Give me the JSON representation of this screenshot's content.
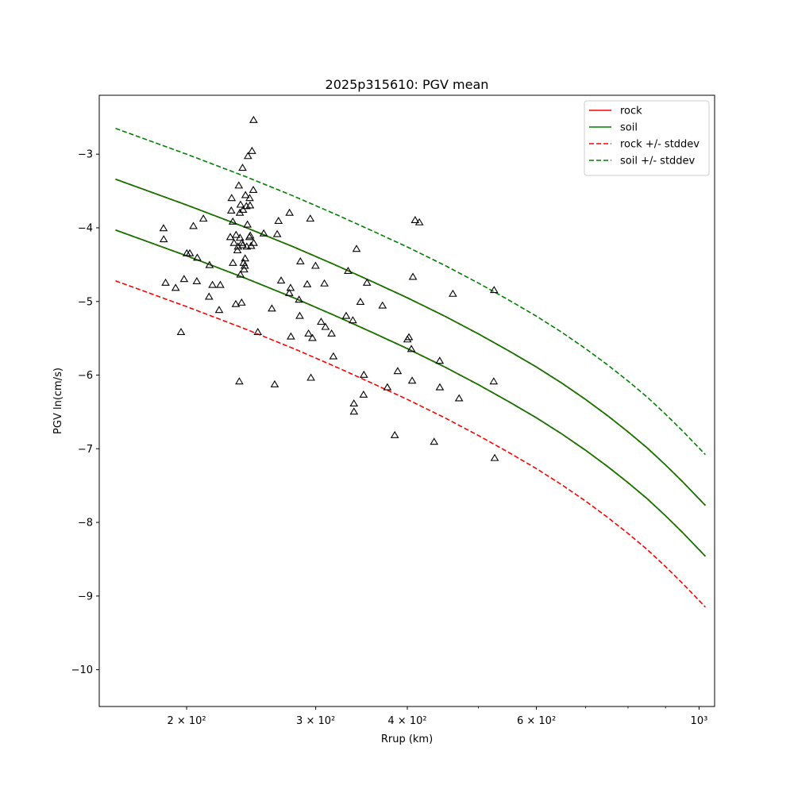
{
  "chart_data": {
    "type": "line",
    "title": "2025p315610: PGV mean",
    "xlabel": "Rrup (km)",
    "ylabel": "PGV ln(cm/s)",
    "xscale": "log",
    "xlim": [
      152,
      1050
    ],
    "ylim": [
      -10.5,
      -2.2
    ],
    "grid": false,
    "legend_position": "top-right",
    "x_ticks": [
      {
        "value": 200,
        "label": "2 × 10²"
      },
      {
        "value": 300,
        "label": "3 × 10²"
      },
      {
        "value": 400,
        "label": "4 × 10²"
      },
      {
        "value": 600,
        "label": "6 × 10²"
      },
      {
        "value": 1000,
        "label": "10³"
      }
    ],
    "x_minor_ticks": [
      500,
      700,
      800,
      900
    ],
    "y_ticks": [
      {
        "value": -3,
        "label": "−3"
      },
      {
        "value": -4,
        "label": "−4"
      },
      {
        "value": -5,
        "label": "−5"
      },
      {
        "value": -6,
        "label": "−6"
      },
      {
        "value": -7,
        "label": "−7"
      },
      {
        "value": -8,
        "label": "−8"
      },
      {
        "value": -9,
        "label": "−9"
      },
      {
        "value": -10,
        "label": "−10"
      }
    ],
    "series": [
      {
        "name": "rock",
        "color": "#ff0000",
        "style": "solid",
        "legend": true,
        "x": [
          160,
          200,
          240,
          280,
          320,
          360,
          400,
          450,
          500,
          550,
          600,
          650,
          700,
          750,
          800,
          850,
          900,
          950,
          1000,
          1020
        ],
        "values": [
          -4.03,
          -4.38,
          -4.68,
          -4.95,
          -5.2,
          -5.43,
          -5.64,
          -5.89,
          -6.13,
          -6.36,
          -6.58,
          -6.8,
          -7.02,
          -7.24,
          -7.46,
          -7.68,
          -7.91,
          -8.14,
          -8.37,
          -8.46
        ]
      },
      {
        "name": "rock",
        "color": "#ff0000",
        "style": "solid",
        "legend": false,
        "x": [
          160,
          200,
          240,
          280,
          320,
          360,
          400,
          450,
          500,
          550,
          600,
          650,
          700,
          750,
          800,
          850,
          900,
          950,
          1000,
          1020
        ],
        "values": [
          -3.34,
          -3.69,
          -3.99,
          -4.26,
          -4.51,
          -4.74,
          -4.95,
          -5.2,
          -5.44,
          -5.67,
          -5.89,
          -6.11,
          -6.33,
          -6.55,
          -6.77,
          -6.99,
          -7.22,
          -7.45,
          -7.68,
          -7.77
        ]
      },
      {
        "name": "soil",
        "color": "#008000",
        "style": "solid",
        "legend": true,
        "x": [
          160,
          200,
          240,
          280,
          320,
          360,
          400,
          450,
          500,
          550,
          600,
          650,
          700,
          750,
          800,
          850,
          900,
          950,
          1000,
          1020
        ],
        "values": [
          -4.03,
          -4.38,
          -4.68,
          -4.95,
          -5.2,
          -5.43,
          -5.64,
          -5.89,
          -6.13,
          -6.36,
          -6.58,
          -6.8,
          -7.02,
          -7.24,
          -7.46,
          -7.68,
          -7.91,
          -8.14,
          -8.37,
          -8.46
        ]
      },
      {
        "name": "soil",
        "color": "#008000",
        "style": "solid",
        "legend": false,
        "x": [
          160,
          200,
          240,
          280,
          320,
          360,
          400,
          450,
          500,
          550,
          600,
          650,
          700,
          750,
          800,
          850,
          900,
          950,
          1000,
          1020
        ],
        "values": [
          -3.34,
          -3.69,
          -3.99,
          -4.26,
          -4.51,
          -4.74,
          -4.95,
          -5.2,
          -5.44,
          -5.67,
          -5.89,
          -6.11,
          -6.33,
          -6.55,
          -6.77,
          -6.99,
          -7.22,
          -7.45,
          -7.68,
          -7.77
        ]
      },
      {
        "name": "rock +/- stddev",
        "color": "#ff0000",
        "style": "dashed",
        "legend": true,
        "x": [
          160,
          200,
          240,
          280,
          320,
          360,
          400,
          450,
          500,
          550,
          600,
          650,
          700,
          750,
          800,
          850,
          900,
          950,
          1000,
          1020
        ],
        "values": [
          -4.72,
          -5.07,
          -5.37,
          -5.64,
          -5.89,
          -6.12,
          -6.33,
          -6.58,
          -6.82,
          -7.05,
          -7.27,
          -7.49,
          -7.71,
          -7.93,
          -8.15,
          -8.37,
          -8.6,
          -8.83,
          -9.06,
          -9.15
        ]
      },
      {
        "name": "rock +/- stddev",
        "color": "#ff0000",
        "style": "dashed",
        "legend": false,
        "x": [
          160,
          200,
          240,
          280,
          320,
          360,
          400,
          450,
          500,
          550,
          600,
          650,
          700,
          750,
          800,
          850,
          900,
          950,
          1000,
          1020
        ],
        "values": [
          -4.03,
          -4.38,
          -4.68,
          -4.95,
          -5.2,
          -5.43,
          -5.64,
          -5.89,
          -6.13,
          -6.36,
          -6.58,
          -6.8,
          -7.02,
          -7.24,
          -7.46,
          -7.68,
          -7.91,
          -8.14,
          -8.37,
          -8.46
        ]
      },
      {
        "name": "rock +/- stddev",
        "color": "#ff0000",
        "style": "dashed",
        "legend": false,
        "x": [
          160,
          200,
          240,
          280,
          320,
          360,
          400,
          450,
          500,
          550,
          600,
          650,
          700,
          750,
          800,
          850,
          900,
          950,
          1000,
          1020
        ],
        "values": [
          -3.34,
          -3.69,
          -3.99,
          -4.26,
          -4.51,
          -4.74,
          -4.95,
          -5.2,
          -5.44,
          -5.67,
          -5.89,
          -6.11,
          -6.33,
          -6.55,
          -6.77,
          -6.99,
          -7.22,
          -7.45,
          -7.68,
          -7.77
        ]
      },
      {
        "name": "soil +/- stddev",
        "color": "#008000",
        "style": "dashed",
        "legend": true,
        "x": [
          160,
          200,
          240,
          280,
          320,
          360,
          400,
          450,
          500,
          550,
          600,
          650,
          700,
          750,
          800,
          850,
          900,
          950,
          1000,
          1020
        ],
        "values": [
          -2.65,
          -3.0,
          -3.3,
          -3.57,
          -3.82,
          -4.05,
          -4.26,
          -4.51,
          -4.75,
          -4.98,
          -5.2,
          -5.42,
          -5.64,
          -5.86,
          -6.08,
          -6.3,
          -6.53,
          -6.76,
          -6.99,
          -7.08
        ]
      },
      {
        "name": "soil +/- stddev",
        "color": "#008000",
        "style": "dashed",
        "legend": false,
        "x": [
          160,
          200,
          240,
          280,
          320,
          360,
          400,
          450,
          500,
          550,
          600,
          650,
          700,
          750,
          800,
          850,
          900,
          950,
          1000,
          1020
        ],
        "values": [
          -4.03,
          -4.38,
          -4.68,
          -4.95,
          -5.2,
          -5.43,
          -5.64,
          -5.89,
          -6.13,
          -6.36,
          -6.58,
          -6.8,
          -7.02,
          -7.24,
          -7.46,
          -7.68,
          -7.91,
          -8.14,
          -8.37,
          -8.46
        ]
      },
      {
        "name": "soil +/- stddev",
        "color": "#008000",
        "style": "dashed",
        "legend": false,
        "x": [
          160,
          200,
          240,
          280,
          320,
          360,
          400,
          450,
          500,
          550,
          600,
          650,
          700,
          750,
          800,
          850,
          900,
          950,
          1000,
          1020
        ],
        "values": [
          -3.34,
          -3.69,
          -3.99,
          -4.26,
          -4.51,
          -4.74,
          -4.95,
          -5.2,
          -5.44,
          -5.67,
          -5.89,
          -6.11,
          -6.33,
          -6.55,
          -6.77,
          -6.99,
          -7.22,
          -7.45,
          -7.68,
          -7.77
        ]
      }
    ],
    "observations": {
      "marker": "triangle-open",
      "color": "#000000",
      "points": [
        [
          186.0,
          -4.01
        ],
        [
          186.1,
          -4.16
        ],
        [
          187.2,
          -4.75
        ],
        [
          193.2,
          -4.82
        ],
        [
          196.5,
          -5.42
        ],
        [
          198.4,
          -4.7
        ],
        [
          200.1,
          -4.35
        ],
        [
          202.0,
          -4.35
        ],
        [
          204.3,
          -3.98
        ],
        [
          206.5,
          -4.73
        ],
        [
          206.8,
          -4.41
        ],
        [
          210.8,
          -3.88
        ],
        [
          214.6,
          -4.94
        ],
        [
          214.9,
          -4.51
        ],
        [
          216.9,
          -4.78
        ],
        [
          221.5,
          -5.12
        ],
        [
          222.3,
          -4.78
        ],
        [
          229.4,
          -4.13
        ],
        [
          230.1,
          -3.77
        ],
        [
          230.4,
          -3.6
        ],
        [
          231.2,
          -3.92
        ],
        [
          231.3,
          -4.48
        ],
        [
          232.1,
          -4.21
        ],
        [
          233.4,
          -5.04
        ],
        [
          233.6,
          -4.1
        ],
        [
          234.6,
          -4.31
        ],
        [
          235.0,
          -4.26
        ],
        [
          235.6,
          -3.43
        ],
        [
          236.0,
          -6.09
        ],
        [
          236.4,
          -3.8
        ],
        [
          236.5,
          -4.14
        ],
        [
          236.8,
          -4.64
        ],
        [
          236.9,
          -3.69
        ],
        [
          237.7,
          -5.02
        ],
        [
          237.9,
          -4.21
        ],
        [
          238.4,
          -3.19
        ],
        [
          238.5,
          -4.24
        ],
        [
          238.8,
          -3.76
        ],
        [
          239.2,
          -4.48
        ],
        [
          239.6,
          -4.57
        ],
        [
          240.1,
          -4.52
        ],
        [
          240.3,
          -4.42
        ],
        [
          240.6,
          -3.56
        ],
        [
          241.3,
          -3.71
        ],
        [
          241.6,
          -4.26
        ],
        [
          242.1,
          -3.96
        ],
        [
          242.5,
          -3.03
        ],
        [
          243.6,
          -4.13
        ],
        [
          243.8,
          -3.6
        ],
        [
          244.1,
          -3.7
        ],
        [
          244.2,
          -4.11
        ],
        [
          244.9,
          -4.25
        ],
        [
          245.6,
          -2.96
        ],
        [
          246.6,
          -3.49
        ],
        [
          246.8,
          -2.54
        ],
        [
          246.9,
          -4.21
        ],
        [
          250.1,
          -5.42
        ],
        [
          254.8,
          -4.08
        ],
        [
          261.4,
          -5.1
        ],
        [
          263.7,
          -6.13
        ],
        [
          265.8,
          -4.09
        ],
        [
          266.9,
          -3.91
        ],
        [
          269.1,
          -4.72
        ],
        [
          276.1,
          -4.89
        ],
        [
          276.3,
          -3.8
        ],
        [
          277.2,
          -4.82
        ],
        [
          277.5,
          -5.48
        ],
        [
          284.7,
          -4.98
        ],
        [
          285.3,
          -5.2
        ],
        [
          285.9,
          -4.46
        ],
        [
          292.1,
          -4.77
        ],
        [
          293.3,
          -5.44
        ],
        [
          294.9,
          -3.88
        ],
        [
          295.5,
          -6.04
        ],
        [
          296.9,
          -5.5
        ],
        [
          299.8,
          -4.52
        ],
        [
          305.1,
          -5.28
        ],
        [
          308.3,
          -4.76
        ],
        [
          309.3,
          -5.35
        ],
        [
          315.3,
          -5.44
        ],
        [
          317.1,
          -5.75
        ],
        [
          330.1,
          -5.2
        ],
        [
          332.1,
          -4.59
        ],
        [
          337.1,
          -5.26
        ],
        [
          338.2,
          -6.39
        ],
        [
          338.3,
          -6.5
        ],
        [
          341.0,
          -4.29
        ],
        [
          345.2,
          -5.01
        ],
        [
          348.6,
          -6.27
        ],
        [
          349.0,
          -6.0
        ],
        [
          352.4,
          -4.75
        ],
        [
          370.0,
          -5.06
        ],
        [
          375.7,
          -6.17
        ],
        [
          384.5,
          -6.82
        ],
        [
          388.1,
          -5.95
        ],
        [
          400.1,
          -5.52
        ],
        [
          402.0,
          -5.49
        ],
        [
          405.1,
          -5.65
        ],
        [
          406.1,
          -6.08
        ],
        [
          407.1,
          -4.67
        ],
        [
          409.9,
          -3.9
        ],
        [
          415.4,
          -3.93
        ],
        [
          435.1,
          -6.91
        ],
        [
          442.8,
          -5.81
        ],
        [
          443.0,
          -6.17
        ],
        [
          461.5,
          -4.9
        ],
        [
          470.6,
          -6.32
        ],
        [
          524.7,
          -6.09
        ],
        [
          525.3,
          -4.85
        ],
        [
          526.3,
          -7.13
        ]
      ]
    }
  }
}
